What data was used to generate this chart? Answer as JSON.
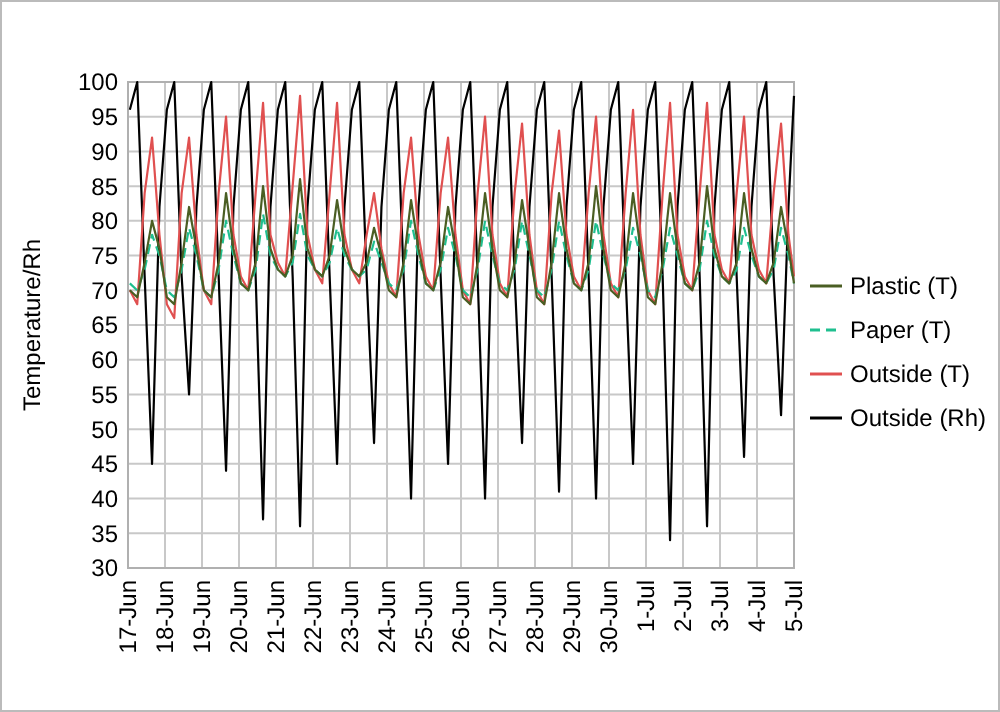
{
  "chart_data": {
    "type": "line",
    "ylabel": "Temperature/Rh",
    "x": [
      "--06-17T01:12",
      "--06-17T06:00",
      "--06-17T10:48",
      "--06-17T15:36",
      "--06-17T20:24",
      "--06-18T01:12",
      "--06-18T06:00",
      "--06-18T10:48",
      "--06-18T15:36",
      "--06-18T20:24",
      "--06-19T01:12",
      "--06-19T06:00",
      "--06-19T10:48",
      "--06-19T15:36",
      "--06-19T20:24",
      "--06-20T01:12",
      "--06-20T06:00",
      "--06-20T10:48",
      "--06-20T15:36",
      "--06-20T20:24",
      "--06-21T01:12",
      "--06-21T06:00",
      "--06-21T10:48",
      "--06-21T15:36",
      "--06-21T20:24",
      "--06-22T01:12",
      "--06-22T06:00",
      "--06-22T10:48",
      "--06-22T15:36",
      "--06-22T20:24",
      "--06-23T01:12",
      "--06-23T06:00",
      "--06-23T10:48",
      "--06-23T15:36",
      "--06-23T20:24",
      "--06-24T01:12",
      "--06-24T06:00",
      "--06-24T10:48",
      "--06-24T15:36",
      "--06-24T20:24",
      "--06-25T01:12",
      "--06-25T06:00",
      "--06-25T10:48",
      "--06-25T15:36",
      "--06-25T20:24",
      "--06-26T01:12",
      "--06-26T06:00",
      "--06-26T10:48",
      "--06-26T15:36",
      "--06-26T20:24",
      "--06-27T01:12",
      "--06-27T06:00",
      "--06-27T10:48",
      "--06-27T15:36",
      "--06-27T20:24",
      "--06-28T01:12",
      "--06-28T06:00",
      "--06-28T10:48",
      "--06-28T15:36",
      "--06-28T20:24",
      "--06-29T01:12",
      "--06-29T06:00",
      "--06-29T10:48",
      "--06-29T15:36",
      "--06-29T20:24",
      "--06-30T01:12",
      "--06-30T06:00",
      "--06-30T10:48",
      "--06-30T15:36",
      "--06-30T20:24",
      "--07-01T01:12",
      "--07-01T06:00",
      "--07-01T10:48",
      "--07-01T15:36",
      "--07-01T20:24",
      "--07-02T01:12",
      "--07-02T06:00",
      "--07-02T10:48",
      "--07-02T15:36",
      "--07-02T20:24",
      "--07-03T01:12",
      "--07-03T06:00",
      "--07-03T10:48",
      "--07-03T15:36",
      "--07-03T20:24",
      "--07-04T01:12",
      "--07-04T06:00",
      "--07-04T10:48",
      "--07-04T15:36",
      "--07-04T20:24",
      "--07-05T00:00"
    ],
    "series": [
      {
        "name": "Plastic (T)",
        "color": "#4a5e23",
        "values": [
          70,
          69,
          74,
          80,
          76,
          69,
          68,
          74,
          82,
          76,
          70,
          69,
          74,
          84,
          76,
          71,
          70,
          74,
          85,
          76,
          73,
          72,
          75,
          86,
          76,
          73,
          72,
          75,
          83,
          76,
          73,
          72,
          74,
          79,
          75,
          70,
          69,
          74,
          83,
          76,
          71,
          70,
          74,
          82,
          76,
          69,
          68,
          74,
          84,
          76,
          70,
          69,
          74,
          83,
          76,
          69,
          68,
          74,
          84,
          76,
          71,
          70,
          74,
          85,
          76,
          70,
          69,
          74,
          84,
          76,
          69,
          68,
          74,
          84,
          76,
          71,
          70,
          74,
          85,
          76,
          72,
          71,
          74,
          84,
          76,
          72,
          71,
          74,
          82,
          76,
          71
        ]
      },
      {
        "name": "Paper (T)",
        "color": "#1fbf8f",
        "line_style": "dashed",
        "values": [
          71,
          70,
          73,
          78,
          75,
          70,
          69,
          73,
          79,
          75,
          70,
          69,
          73,
          80,
          75,
          71,
          70,
          73,
          81,
          75,
          73,
          72,
          74,
          81,
          75,
          73,
          72,
          74,
          79,
          75,
          73,
          72,
          73,
          77,
          74,
          71,
          70,
          73,
          80,
          75,
          71,
          70,
          73,
          79,
          75,
          70,
          69,
          73,
          80,
          75,
          71,
          70,
          73,
          80,
          75,
          70,
          69,
          73,
          80,
          75,
          71,
          70,
          73,
          80,
          75,
          71,
          70,
          73,
          79,
          75,
          70,
          69,
          73,
          79,
          75,
          71,
          70,
          73,
          80,
          75,
          72,
          71,
          73,
          79,
          75,
          72,
          71,
          73,
          79,
          75,
          71
        ]
      },
      {
        "name": "Outside (T)",
        "color": "#e05050",
        "values": [
          70,
          68,
          84,
          92,
          78,
          68,
          66,
          84,
          92,
          78,
          70,
          68,
          84,
          95,
          78,
          72,
          70,
          84,
          97,
          78,
          74,
          72,
          85,
          98,
          78,
          73,
          71,
          84,
          97,
          78,
          73,
          71,
          78,
          84,
          76,
          71,
          69,
          84,
          92,
          78,
          72,
          70,
          84,
          92,
          78,
          70,
          68,
          84,
          95,
          78,
          71,
          69,
          84,
          94,
          78,
          70,
          68,
          84,
          93,
          78,
          72,
          70,
          84,
          95,
          78,
          71,
          69,
          84,
          96,
          78,
          70,
          68,
          84,
          97,
          78,
          72,
          70,
          84,
          97,
          78,
          73,
          71,
          84,
          95,
          78,
          73,
          71,
          84,
          94,
          78,
          72
        ]
      },
      {
        "name": "Outside (Rh)",
        "color": "#000000",
        "values": [
          96,
          100,
          72,
          45,
          82,
          96,
          100,
          72,
          55,
          82,
          96,
          100,
          72,
          44,
          82,
          96,
          100,
          72,
          37,
          82,
          96,
          100,
          72,
          36,
          82,
          96,
          100,
          72,
          45,
          82,
          96,
          100,
          72,
          48,
          82,
          96,
          100,
          72,
          40,
          82,
          96,
          100,
          72,
          45,
          82,
          96,
          100,
          72,
          40,
          82,
          96,
          100,
          72,
          48,
          82,
          96,
          100,
          72,
          41,
          82,
          96,
          100,
          72,
          40,
          82,
          96,
          100,
          72,
          45,
          82,
          96,
          100,
          72,
          34,
          82,
          96,
          100,
          72,
          36,
          82,
          96,
          100,
          72,
          46,
          82,
          96,
          100,
          72,
          52,
          82,
          98
        ]
      }
    ],
    "xlim": [
      "--06-17",
      "--07-05"
    ],
    "xticks": [
      {
        "value": "--06-17",
        "label": "17-Jun"
      },
      {
        "value": "--06-18",
        "label": "18-Jun"
      },
      {
        "value": "--06-19",
        "label": "19-Jun"
      },
      {
        "value": "--06-20",
        "label": "20-Jun"
      },
      {
        "value": "--06-21",
        "label": "21-Jun"
      },
      {
        "value": "--06-22",
        "label": "22-Jun"
      },
      {
        "value": "--06-23",
        "label": "23-Jun"
      },
      {
        "value": "--06-24",
        "label": "24-Jun"
      },
      {
        "value": "--06-25",
        "label": "25-Jun"
      },
      {
        "value": "--06-26",
        "label": "26-Jun"
      },
      {
        "value": "--06-27",
        "label": "27-Jun"
      },
      {
        "value": "--06-28",
        "label": "28-Jun"
      },
      {
        "value": "--06-29",
        "label": "29-Jun"
      },
      {
        "value": "--06-30",
        "label": "30-Jun"
      },
      {
        "value": "--07-01",
        "label": "1-Jul"
      },
      {
        "value": "--07-02",
        "label": "2-Jul"
      },
      {
        "value": "--07-03",
        "label": "3-Jul"
      },
      {
        "value": "--07-04",
        "label": "4-Jul"
      },
      {
        "value": "--07-05",
        "label": "5-Jul"
      }
    ],
    "ylim": [
      30,
      100
    ],
    "yticks": [
      30,
      35,
      40,
      45,
      50,
      55,
      60,
      65,
      70,
      75,
      80,
      85,
      90,
      95,
      100
    ],
    "grid": true,
    "legend": "right",
    "marker": "none"
  }
}
